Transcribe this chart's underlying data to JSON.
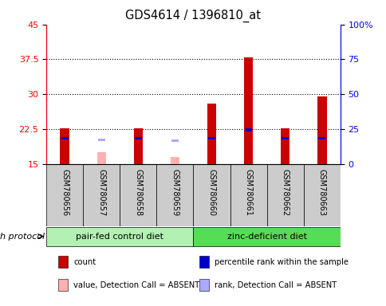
{
  "title": "GDS4614 / 1396810_at",
  "samples": [
    "GSM780656",
    "GSM780657",
    "GSM780658",
    "GSM780659",
    "GSM780660",
    "GSM780661",
    "GSM780662",
    "GSM780663"
  ],
  "count_values": [
    22.6,
    0,
    22.6,
    0,
    28.0,
    38.0,
    22.6,
    29.5
  ],
  "count_absent_values": [
    0,
    17.5,
    0,
    16.5,
    0,
    0,
    0,
    0
  ],
  "percentile_values": [
    20.5,
    0,
    20.5,
    0,
    20.5,
    22.3,
    20.5,
    20.5
  ],
  "percentile_absent_values": [
    0,
    20.2,
    0,
    20.0,
    0,
    0,
    0,
    0
  ],
  "count_color": "#cc0000",
  "count_absent_color": "#ffb0b0",
  "percentile_color": "#0000cc",
  "percentile_absent_color": "#aaaaff",
  "bar_width": 0.25,
  "rank_square_size": 0.6,
  "ylim_left": [
    15,
    45
  ],
  "ylim_right": [
    0,
    100
  ],
  "yticks_left": [
    15,
    22.5,
    30,
    37.5,
    45
  ],
  "yticks_right": [
    0,
    25,
    50,
    75,
    100
  ],
  "ytick_labels_right": [
    "0",
    "25",
    "50",
    "75",
    "100%"
  ],
  "groups": [
    {
      "label": "pair-fed control diet",
      "start": 0,
      "end": 3,
      "color": "#b3f0b3"
    },
    {
      "label": "zinc-deficient diet",
      "start": 4,
      "end": 7,
      "color": "#55dd55"
    }
  ],
  "group_label": "growth protocol",
  "legend_items": [
    {
      "color": "#cc0000",
      "label": "count"
    },
    {
      "color": "#0000cc",
      "label": "percentile rank within the sample"
    },
    {
      "color": "#ffb0b0",
      "label": "value, Detection Call = ABSENT"
    },
    {
      "color": "#aaaaff",
      "label": "rank, Detection Call = ABSENT"
    }
  ],
  "sample_box_color": "#cccccc",
  "plot_bg_color": "#ffffff",
  "grid_dotted_vals": [
    22.5,
    30,
    37.5
  ]
}
